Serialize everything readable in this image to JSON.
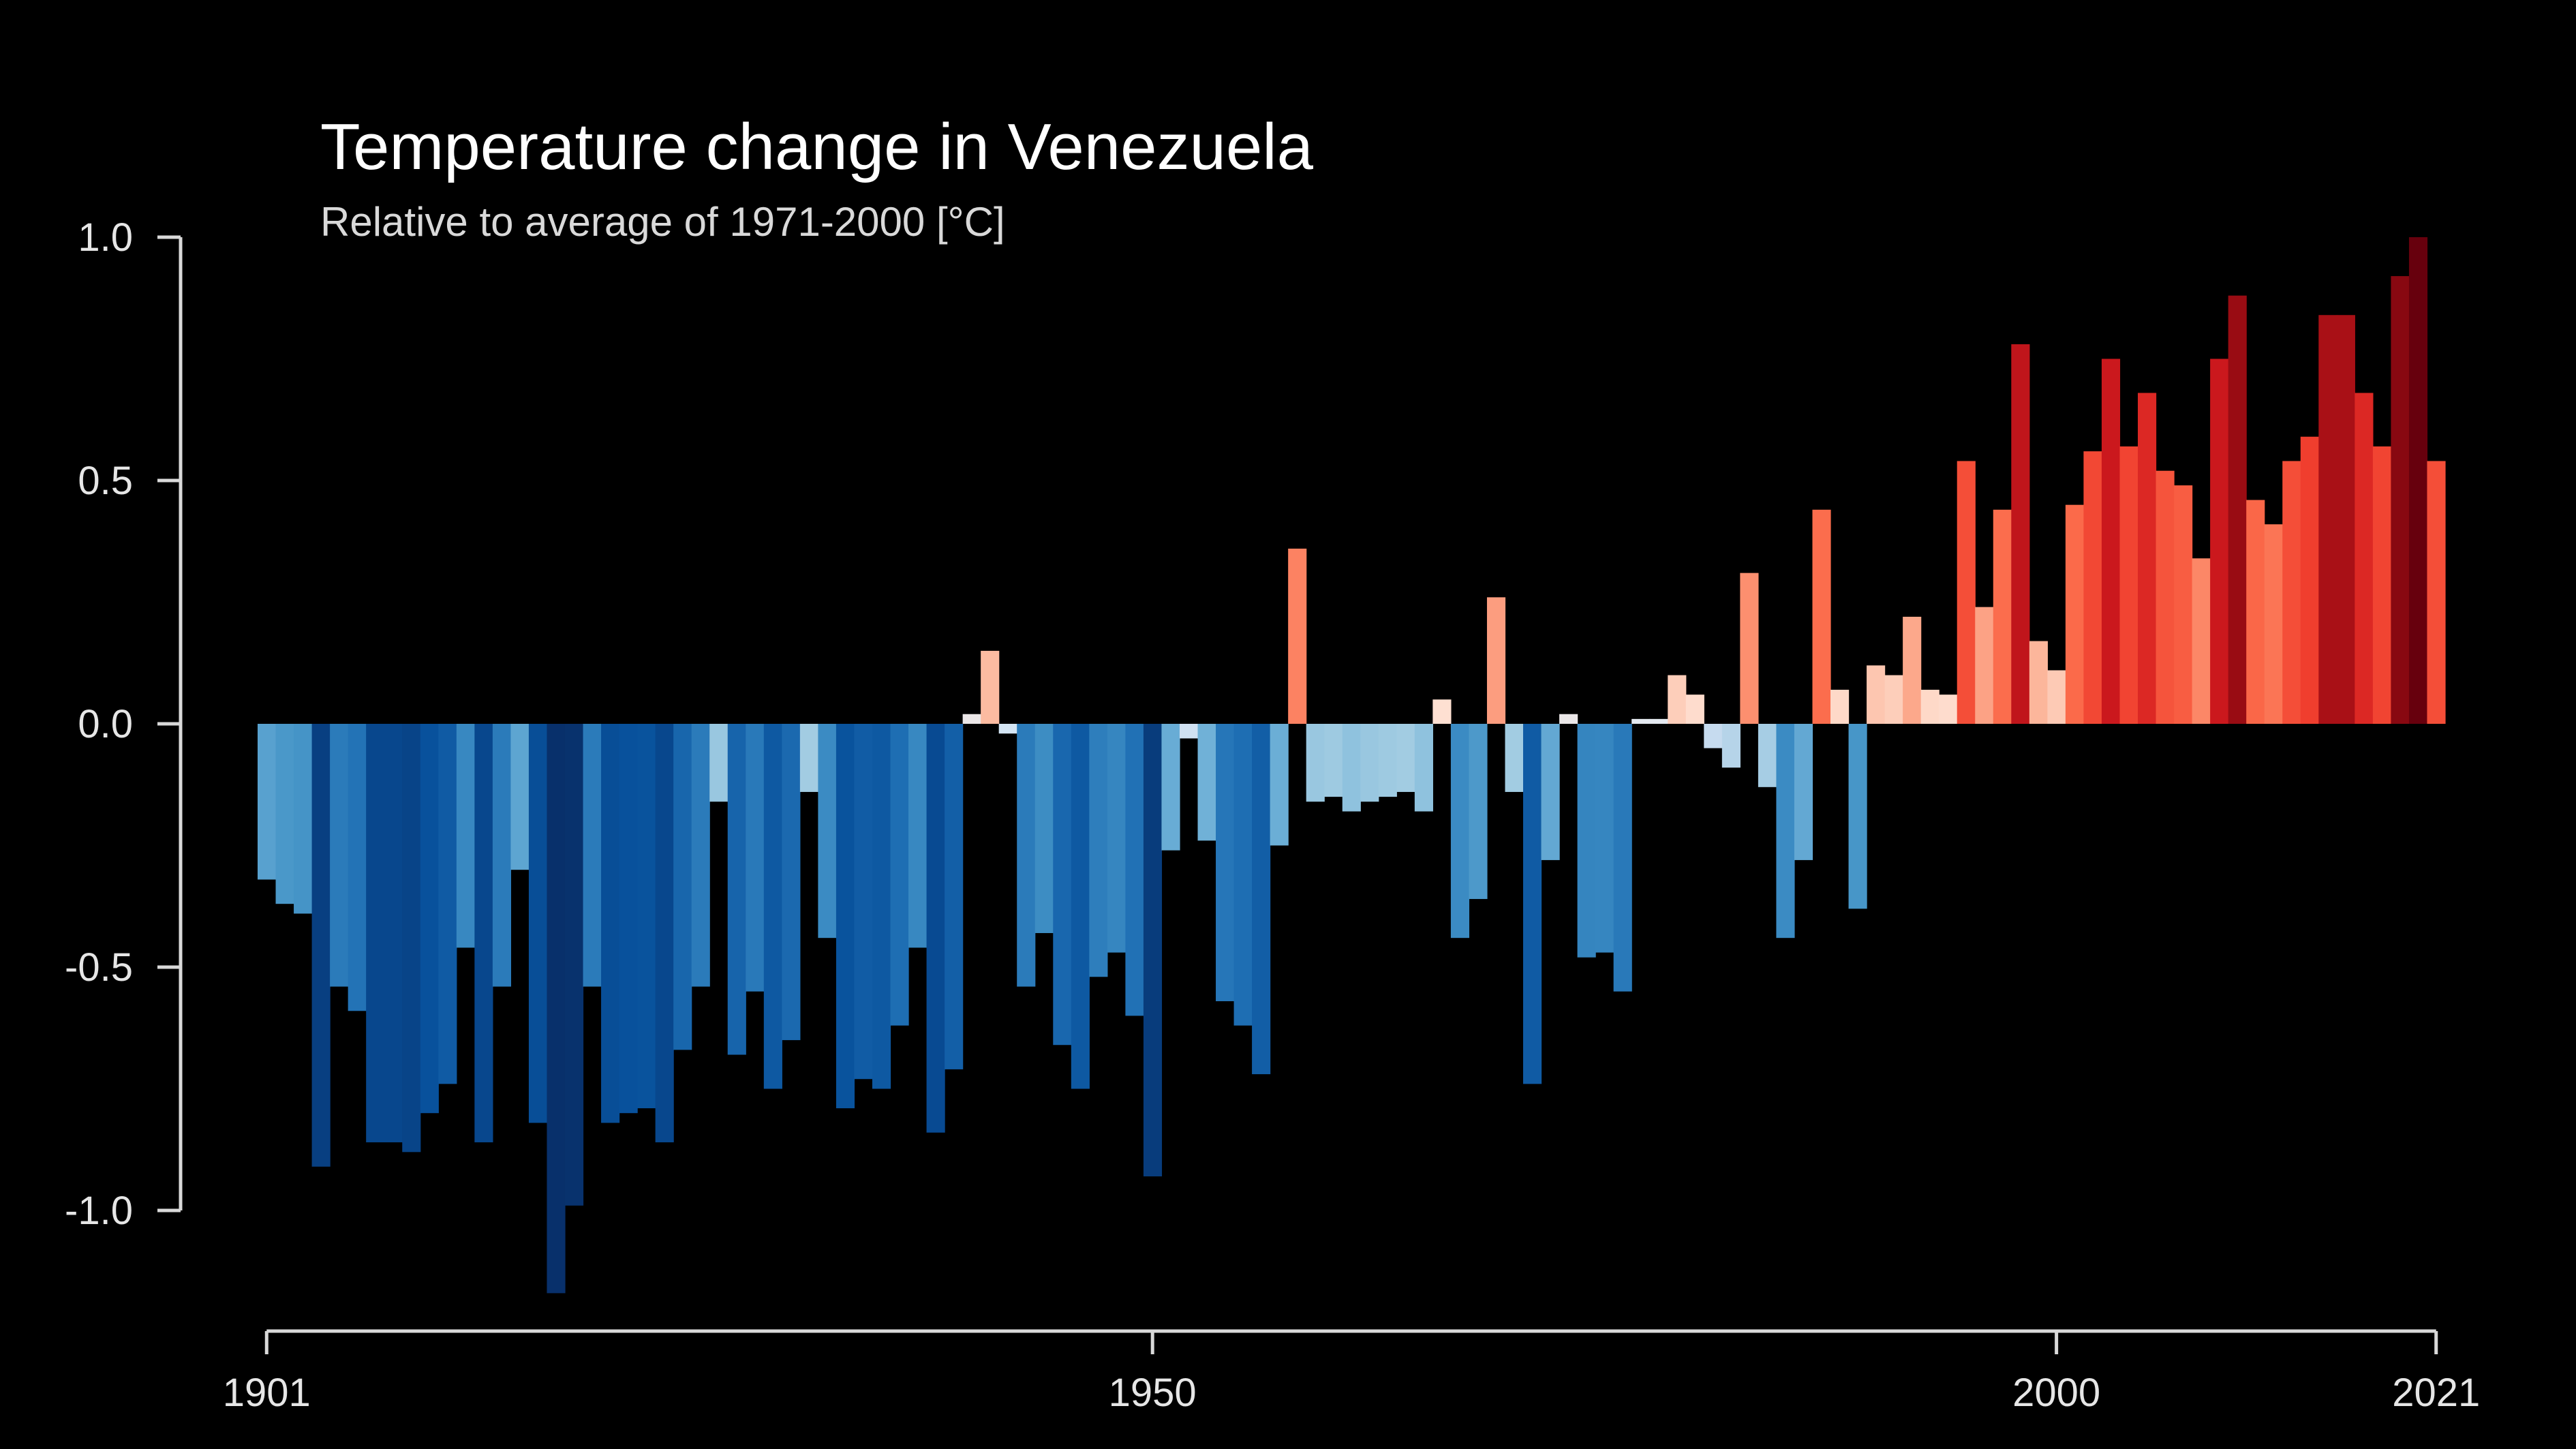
{
  "chart_data": {
    "type": "bar",
    "title": "Temperature change in Venezuela",
    "subtitle": "Relative to average of 1971-2000  [°C]",
    "xlabel": "",
    "ylabel": "",
    "x_start": 1901,
    "x_end": 2021,
    "x_ticks": [
      1901,
      1950,
      2000,
      2021
    ],
    "ylim": [
      -1.2,
      1.0
    ],
    "y_ticks": [
      "1.0",
      "0.5",
      "0.0",
      "-0.5",
      "-1.0"
    ],
    "legend": "none",
    "grid": false,
    "colors": {
      "negative_extreme": "#08306b",
      "negative_mid": "#2171b5",
      "negative_light": "#deebf7",
      "positive_light": "#fee0d2",
      "positive_mid": "#fb6a4a",
      "positive_extreme": "#67000d"
    },
    "years": [
      1901,
      1902,
      1903,
      1904,
      1905,
      1906,
      1907,
      1908,
      1909,
      1910,
      1911,
      1912,
      1913,
      1914,
      1915,
      1916,
      1917,
      1918,
      1919,
      1920,
      1921,
      1922,
      1923,
      1924,
      1925,
      1926,
      1927,
      1928,
      1929,
      1930,
      1931,
      1932,
      1933,
      1934,
      1935,
      1936,
      1937,
      1938,
      1939,
      1940,
      1941,
      1942,
      1943,
      1944,
      1945,
      1946,
      1947,
      1948,
      1949,
      1950,
      1951,
      1952,
      1953,
      1954,
      1955,
      1956,
      1957,
      1958,
      1959,
      1960,
      1961,
      1962,
      1963,
      1964,
      1965,
      1966,
      1967,
      1968,
      1969,
      1970,
      1971,
      1972,
      1973,
      1974,
      1975,
      1976,
      1977,
      1978,
      1979,
      1980,
      1981,
      1982,
      1983,
      1984,
      1985,
      1986,
      1987,
      1988,
      1989,
      1990,
      1991,
      1992,
      1993,
      1994,
      1995,
      1996,
      1997,
      1998,
      1999,
      2000,
      2001,
      2002,
      2003,
      2004,
      2005,
      2006,
      2007,
      2008,
      2009,
      2010,
      2011,
      2012,
      2013,
      2014,
      2015,
      2016,
      2017,
      2018,
      2019,
      2020,
      2021
    ],
    "values": [
      -0.32,
      -0.37,
      -0.39,
      -0.91,
      -0.54,
      -0.59,
      -0.86,
      -0.86,
      -0.88,
      -0.8,
      -0.74,
      -0.46,
      -0.86,
      -0.54,
      -0.3,
      -0.82,
      -1.17,
      -0.99,
      -0.54,
      -0.82,
      -0.8,
      -0.79,
      -0.86,
      -0.67,
      -0.54,
      -0.16,
      -0.68,
      -0.55,
      -0.75,
      -0.65,
      -0.14,
      -0.44,
      -0.79,
      -0.73,
      -0.75,
      -0.62,
      -0.46,
      -0.84,
      -0.71,
      0.02,
      0.15,
      -0.02,
      -0.54,
      -0.43,
      -0.66,
      -0.75,
      -0.52,
      -0.47,
      -0.6,
      -0.93,
      -0.26,
      -0.03,
      -0.24,
      -0.57,
      -0.62,
      -0.72,
      -0.25,
      0.36,
      -0.16,
      -0.15,
      -0.18,
      -0.16,
      -0.15,
      -0.14,
      -0.18,
      0.05,
      -0.44,
      -0.36,
      0.26,
      -0.14,
      -0.74,
      -0.28,
      0.02,
      -0.48,
      -0.47,
      -0.55,
      0.01,
      0.01,
      0.1,
      0.06,
      -0.05,
      -0.09,
      0.31,
      -0.13,
      -0.44,
      -0.28,
      0.44,
      0.07,
      -0.38,
      0.12,
      0.1,
      0.22,
      0.07,
      0.06,
      0.54,
      0.24,
      0.44,
      0.78,
      0.17,
      0.11,
      0.45,
      0.56,
      0.75,
      0.57,
      0.68,
      0.52,
      0.49,
      0.34,
      0.75,
      0.88,
      0.46,
      0.41,
      0.54,
      0.59,
      0.84,
      0.84,
      0.68,
      0.57,
      0.92,
      1.0,
      0.54
    ]
  }
}
